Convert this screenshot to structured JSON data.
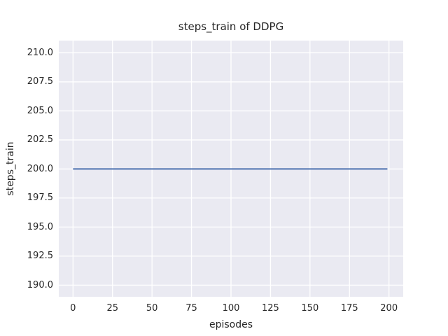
{
  "chart_data": {
    "type": "line",
    "title": "steps_train of DDPG",
    "xlabel": "episodes",
    "ylabel": "steps_train",
    "xlim": [
      -9,
      209
    ],
    "ylim": [
      189,
      211.05
    ],
    "x_tick_labels": [
      "0",
      "25",
      "50",
      "75",
      "100",
      "125",
      "150",
      "175",
      "200"
    ],
    "y_tick_labels": [
      "190.0",
      "192.5",
      "195.0",
      "197.5",
      "200.0",
      "202.5",
      "205.0",
      "207.5",
      "210.0"
    ],
    "grid": true,
    "legend_position": "none",
    "series": [
      {
        "name": "steps_train",
        "x": [
          0,
          199
        ],
        "y": [
          200,
          200
        ],
        "color": "#4c72b0",
        "linewidth": 2
      }
    ],
    "colors": {
      "plot_background": "#eaeaf2",
      "grid": "#ffffff",
      "text": "#262626",
      "figure_background": "#ffffff"
    }
  },
  "layout_note": "constant line: steps_train stays at 200 for all 200 training episodes"
}
